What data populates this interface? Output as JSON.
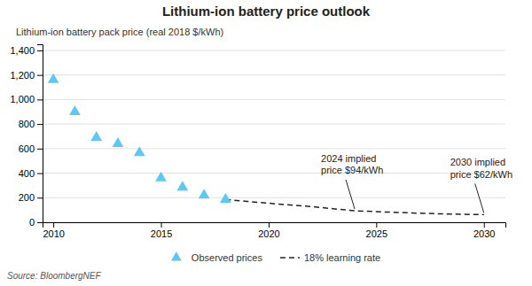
{
  "chart_data": {
    "type": "line",
    "title": "Lithium-ion battery price outlook",
    "ylabel": "Lithium-ion battery pack price (real 2018 $/kWh)",
    "source": "Source: BloombergNEF",
    "series": [
      {
        "name": "Observed prices",
        "type": "scatter",
        "marker": "triangle",
        "color": "#5BC8F5",
        "x": [
          2010,
          2011,
          2012,
          2013,
          2014,
          2015,
          2016,
          2017,
          2018
        ],
        "values": [
          1160,
          900,
          690,
          640,
          565,
          360,
          285,
          220,
          185
        ]
      },
      {
        "name": "18% learning rate",
        "type": "line",
        "line_style": "dashed",
        "color": "#222222",
        "x": [
          2018,
          2019,
          2020,
          2021,
          2022,
          2023,
          2024,
          2025,
          2026,
          2027,
          2028,
          2029,
          2030
        ],
        "values": [
          185,
          170,
          155,
          140,
          128,
          110,
          94,
          86,
          80,
          74,
          68,
          65,
          62
        ]
      }
    ],
    "xlim": [
      2009.5,
      2031.0
    ],
    "xticks": [
      2010,
      2015,
      2020,
      2025,
      2030
    ],
    "ylim": [
      0,
      1450
    ],
    "yticks": [
      0,
      200,
      400,
      600,
      800,
      {
        "value": 1000,
        "label": "1,000"
      },
      {
        "value": 1200,
        "label": "1,200"
      },
      {
        "value": 1400,
        "label": "1,400"
      }
    ],
    "annotations": [
      {
        "text": "2024 implied\nprice $94/kWh",
        "x": 2024,
        "y": 94
      },
      {
        "text": "2030 implied\nprice $62/kWh",
        "x": 2030,
        "y": 62
      }
    ],
    "grid": true,
    "legend": "bottom"
  }
}
